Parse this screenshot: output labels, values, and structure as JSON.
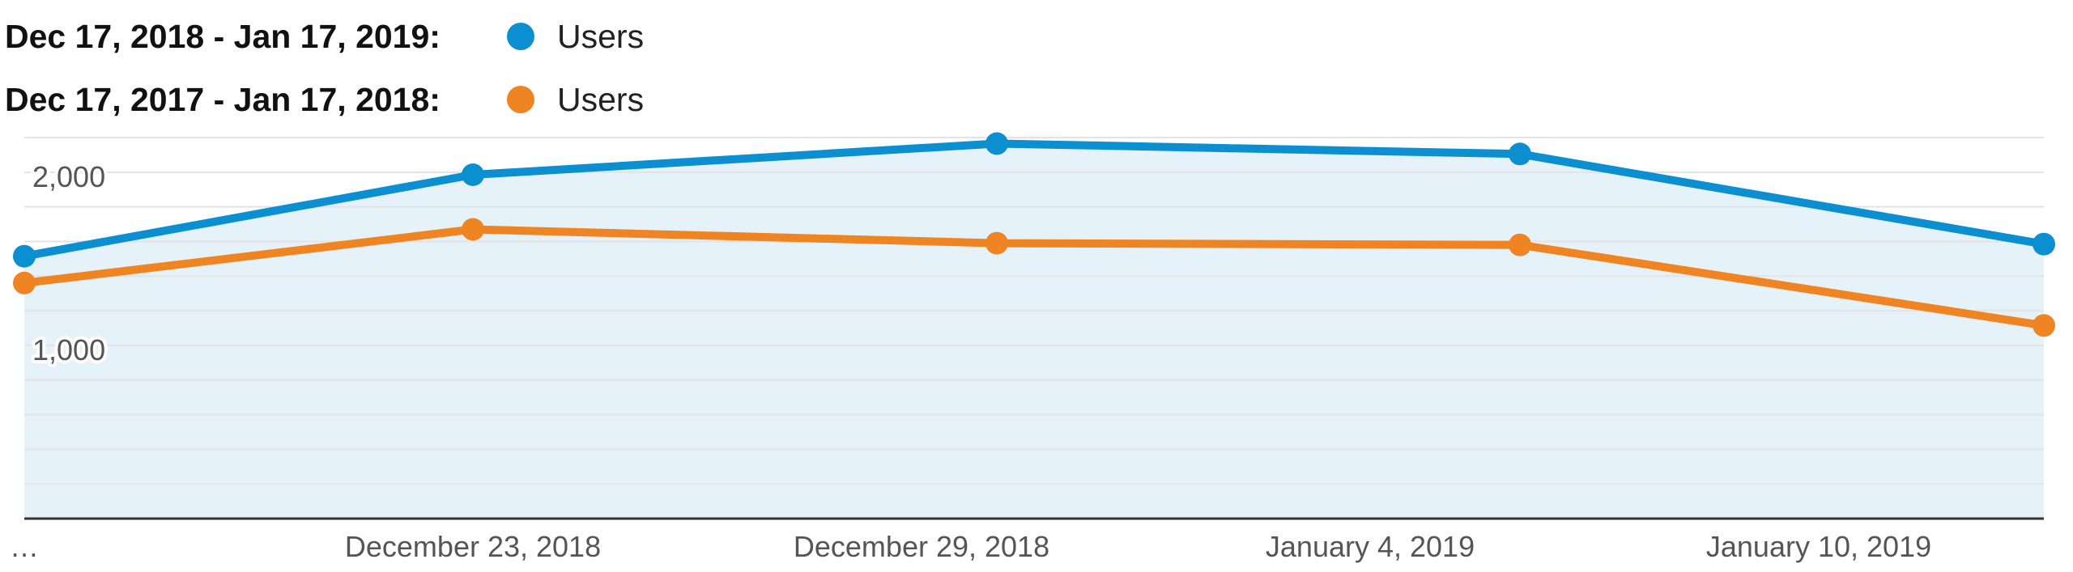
{
  "chart_data": {
    "type": "line",
    "x_tick_labels": [
      "…",
      "December 23, 2018",
      "December 29, 2018",
      "January 4, 2019",
      "January 10, 2019"
    ],
    "y_tick_labels": [
      "2,000",
      "1,000"
    ],
    "y_tick_values": [
      2000,
      1000
    ],
    "ylim": [
      0,
      2200
    ],
    "grid": true,
    "legend_position": "top-left",
    "series": [
      {
        "range": "Dec 17, 2018 - Jan 17, 2019:",
        "name": "Users",
        "color": "#0b8fd0",
        "fill": "#e6f2fa",
        "values": [
          1515,
          1985,
          2165,
          2105,
          1585
        ]
      },
      {
        "range": "Dec 17, 2017 - Jan 17, 2018:",
        "name": "Users",
        "color": "#ef8522",
        "values": [
          1360,
          1670,
          1590,
          1580,
          1115
        ]
      }
    ]
  }
}
